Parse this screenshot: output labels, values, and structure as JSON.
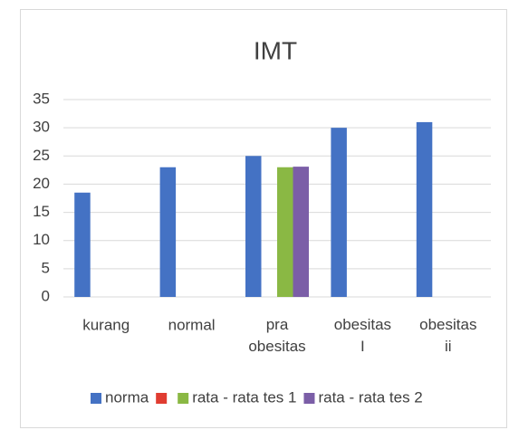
{
  "chart_data": {
    "type": "bar",
    "title": "IMT",
    "categories": [
      "kurang",
      "normal",
      "pra obesitas",
      "obesitas I",
      "obesitas ii"
    ],
    "series": [
      {
        "name": "norma",
        "color": "#4472c4",
        "values": [
          18.5,
          23,
          25,
          30,
          31
        ]
      },
      {
        "name": null,
        "color": "#e03c31",
        "values": [
          null,
          null,
          null,
          null,
          null
        ]
      },
      {
        "name": "rata - rata tes 1",
        "color": "#8ab844",
        "values": [
          null,
          null,
          23,
          null,
          null
        ]
      },
      {
        "name": "rata - rata tes 2",
        "color": "#7b5ea7",
        "values": [
          null,
          null,
          23.1,
          null,
          null
        ]
      }
    ],
    "ylim": [
      0,
      35
    ],
    "yticks": [
      0,
      5,
      10,
      15,
      20,
      25,
      30,
      35
    ],
    "grid": true,
    "legend": "bottom"
  }
}
